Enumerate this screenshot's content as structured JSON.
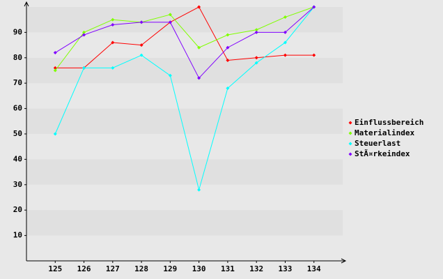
{
  "chart_data": {
    "type": "line",
    "categories": [
      "125",
      "126",
      "127",
      "128",
      "129",
      "130",
      "131",
      "132",
      "133",
      "134"
    ],
    "series": [
      {
        "name": "Einflussbereich",
        "color": "#ff0000",
        "values": [
          76,
          76,
          86,
          85,
          94,
          100,
          79,
          80,
          81,
          81
        ]
      },
      {
        "name": "Materialindex",
        "color": "#80ff00",
        "values": [
          75,
          90,
          95,
          94,
          97,
          84,
          89,
          91,
          96,
          100
        ]
      },
      {
        "name": "Steuerlast",
        "color": "#00ffff",
        "values": [
          50,
          76,
          76,
          81,
          73,
          28,
          68,
          78,
          86,
          100
        ]
      },
      {
        "name": "StÃ¤rkeindex",
        "color": "#8000ff",
        "values": [
          82,
          89,
          93,
          94,
          94,
          72,
          84,
          90,
          90,
          100
        ]
      }
    ],
    "ylim": [
      0,
      100
    ],
    "yticks": [
      10,
      20,
      30,
      40,
      50,
      60,
      70,
      80,
      90
    ],
    "grid": true,
    "legend": "right"
  }
}
